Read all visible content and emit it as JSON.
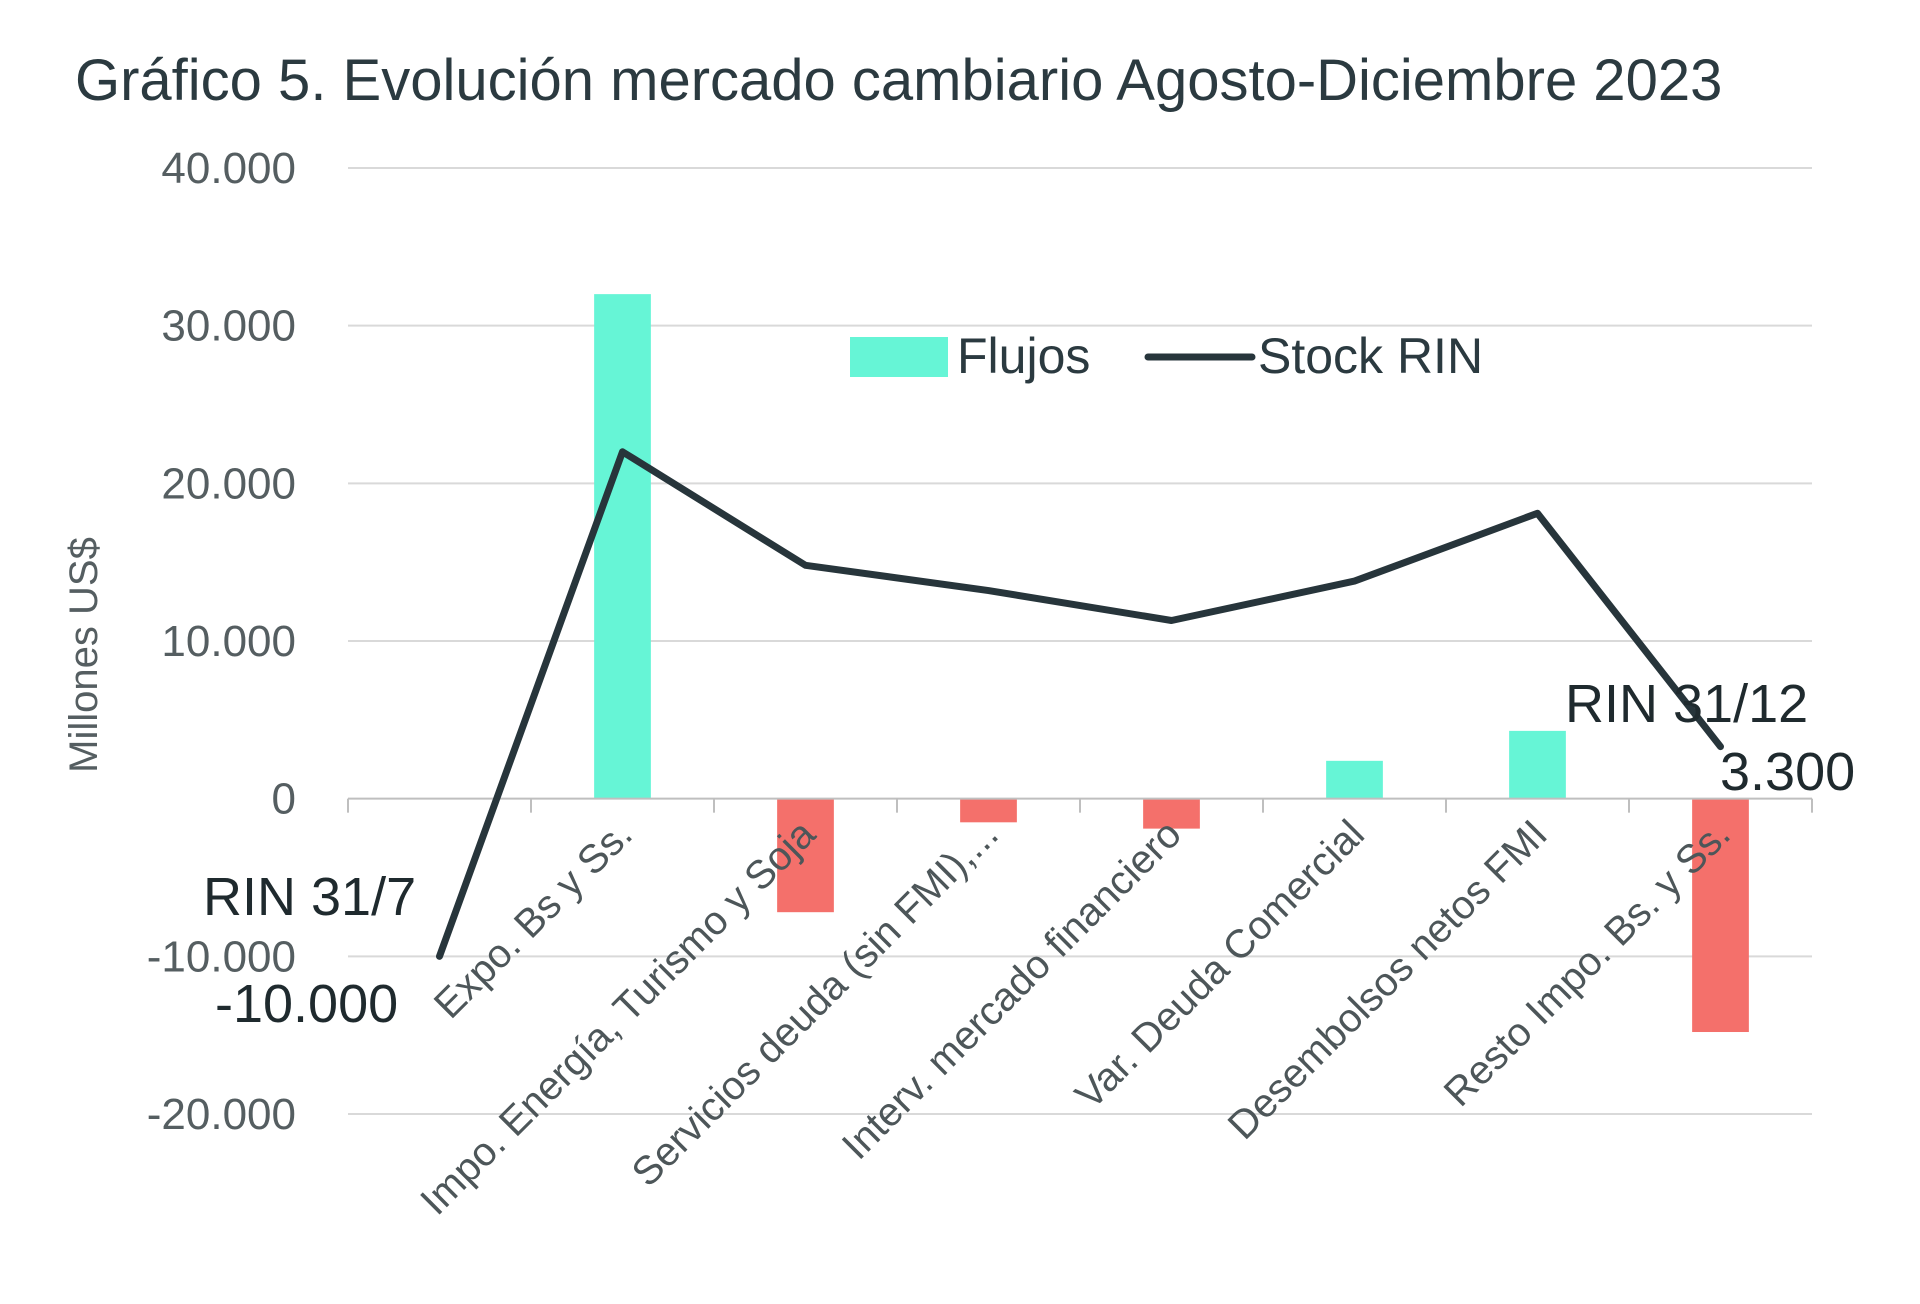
{
  "chart_data": {
    "type": "bar",
    "title": "Gráfico 5. Evolución mercado cambiario Agosto-Diciembre 2023",
    "ylabel": "Millones US$",
    "xlabel": "",
    "ylim": [
      -20000,
      40000
    ],
    "yticks": [
      40000,
      30000,
      20000,
      10000,
      0,
      -10000,
      -20000
    ],
    "ytick_labels": [
      "40.000",
      "30.000",
      "20.000",
      "10.000",
      "0",
      "-10.000",
      "-20.000"
    ],
    "categories": [
      "",
      "Expo. Bs y Ss.",
      "Impo. Energía, Turismo y Soja",
      "Servicios deuda (sin FMI),...",
      "Interv. mercado financiero",
      "Var. Deuda Comercial",
      "Desembolsos netos FMI",
      "Resto Impo. Bs. y Ss."
    ],
    "series": [
      {
        "name": "Flujos",
        "kind": "bar",
        "values": [
          null,
          32000,
          -7200,
          -1500,
          -1900,
          2400,
          4300,
          -14800
        ],
        "color_positive": "#66f5d6",
        "color_negative": "#f4706b"
      },
      {
        "name": "Stock RIN",
        "kind": "line",
        "values": [
          -10000,
          22000,
          14800,
          13200,
          11300,
          13800,
          18100,
          3300
        ],
        "color": "#27353b"
      }
    ],
    "legend_position": "top-center",
    "grid": true,
    "annotations": [
      {
        "text": "RIN 31/7",
        "category_index": 0
      },
      {
        "text": "-10.000",
        "category_index": 0
      },
      {
        "text": "RIN  31/12",
        "category_index": 7
      },
      {
        "text": "3.300",
        "category_index": 7
      }
    ]
  }
}
